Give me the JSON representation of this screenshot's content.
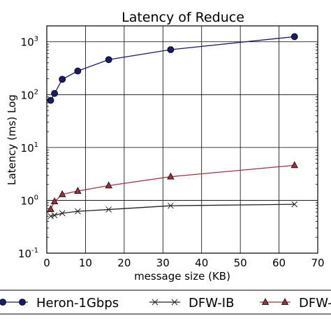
{
  "chart_data": {
    "type": "line",
    "title": "Latency of Reduce",
    "xlabel": "message size (KB)",
    "ylabel": "Latency (ms) Log",
    "y_scale": "log",
    "xlim": [
      0,
      70
    ],
    "ylim": [
      0.1,
      2000
    ],
    "grid": true,
    "legend_position": "bottom",
    "x_ticks": [
      {
        "value": 0,
        "label": "0"
      },
      {
        "value": 10,
        "label": "10"
      },
      {
        "value": 20,
        "label": "20"
      },
      {
        "value": 30,
        "label": "30"
      },
      {
        "value": 40,
        "label": "40"
      },
      {
        "value": 50,
        "label": "50"
      },
      {
        "value": 60,
        "label": "60"
      },
      {
        "value": 70,
        "label": "70"
      }
    ],
    "y_ticks": [
      {
        "value": 0.1,
        "base": "10",
        "exp": "-1"
      },
      {
        "value": 1,
        "base": "10",
        "exp": "0"
      },
      {
        "value": 10,
        "base": "10",
        "exp": "1"
      },
      {
        "value": 100,
        "base": "10",
        "exp": "2"
      },
      {
        "value": 1000,
        "base": "10",
        "exp": "3"
      }
    ],
    "series": [
      {
        "name": "Heron-1Gbps",
        "color": "#1a1a6e",
        "marker": "circle",
        "x": [
          1,
          2,
          4,
          8,
          16,
          32,
          64
        ],
        "y": [
          78,
          105,
          195,
          280,
          460,
          710,
          1250
        ]
      },
      {
        "name": "DFW-IB",
        "color": "#222222",
        "marker": "x",
        "x": [
          1,
          2,
          4,
          8,
          16,
          32,
          64
        ],
        "y": [
          0.5,
          0.52,
          0.57,
          0.62,
          0.67,
          0.79,
          0.84
        ]
      },
      {
        "name": "DFW-",
        "color": "#a03040",
        "marker": "triangle",
        "x": [
          1,
          2,
          4,
          8,
          16,
          32,
          64
        ],
        "y": [
          0.68,
          0.95,
          1.3,
          1.5,
          1.9,
          2.8,
          4.6
        ]
      }
    ]
  }
}
